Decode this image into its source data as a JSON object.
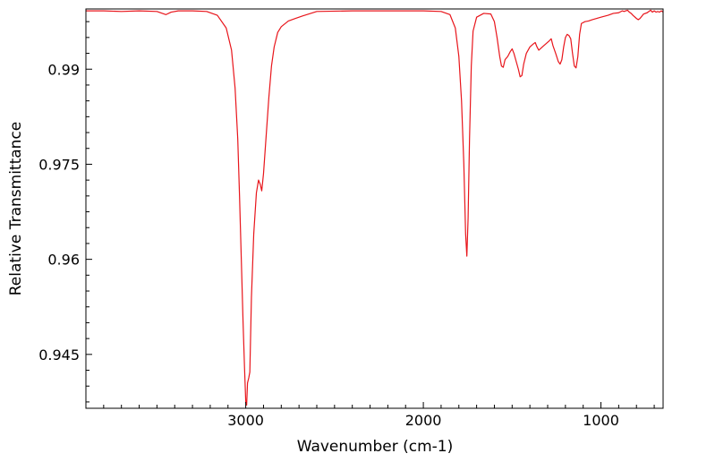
{
  "chart_data": {
    "type": "line",
    "title": "",
    "xlabel": "Wavenumber (cm-1)",
    "ylabel": "Relative Transmittance",
    "xlim": [
      3900,
      650
    ],
    "ylim": [
      0.9365,
      0.9995
    ],
    "x_reversed": true,
    "grid": false,
    "legend": "none",
    "x_ticks": [
      {
        "value": 3000,
        "label": "3000"
      },
      {
        "value": 2000,
        "label": "2000"
      },
      {
        "value": 1000,
        "label": "1000"
      }
    ],
    "y_ticks": [
      {
        "value": 0.99,
        "label": "0.99"
      },
      {
        "value": 0.975,
        "label": "0.975"
      },
      {
        "value": 0.96,
        "label": "0.96"
      },
      {
        "value": 0.945,
        "label": "0.945"
      }
    ],
    "series": [
      {
        "color": "#e8151b",
        "points": [
          [
            3900,
            0.9992
          ],
          [
            3800,
            0.9992
          ],
          [
            3700,
            0.9991
          ],
          [
            3600,
            0.9992
          ],
          [
            3500,
            0.9991
          ],
          [
            3450,
            0.9986
          ],
          [
            3420,
            0.999
          ],
          [
            3380,
            0.9992
          ],
          [
            3300,
            0.9992
          ],
          [
            3220,
            0.9991
          ],
          [
            3160,
            0.9985
          ],
          [
            3110,
            0.9965
          ],
          [
            3080,
            0.993
          ],
          [
            3060,
            0.987
          ],
          [
            3045,
            0.979
          ],
          [
            3035,
            0.97
          ],
          [
            3025,
            0.96
          ],
          [
            3015,
            0.95
          ],
          [
            3007,
            0.943
          ],
          [
            3000,
            0.9375
          ],
          [
            2995,
            0.937
          ],
          [
            2990,
            0.9405
          ],
          [
            2983,
            0.9413
          ],
          [
            2977,
            0.9422
          ],
          [
            2968,
            0.954
          ],
          [
            2955,
            0.964
          ],
          [
            2940,
            0.9705
          ],
          [
            2928,
            0.9725
          ],
          [
            2918,
            0.9718
          ],
          [
            2910,
            0.9708
          ],
          [
            2900,
            0.9735
          ],
          [
            2885,
            0.9795
          ],
          [
            2870,
            0.9855
          ],
          [
            2855,
            0.9905
          ],
          [
            2840,
            0.9935
          ],
          [
            2820,
            0.9958
          ],
          [
            2800,
            0.9967
          ],
          [
            2760,
            0.9976
          ],
          [
            2720,
            0.998
          ],
          [
            2680,
            0.9984
          ],
          [
            2600,
            0.9991
          ],
          [
            2400,
            0.9992
          ],
          [
            2200,
            0.9992
          ],
          [
            2000,
            0.9992
          ],
          [
            1900,
            0.9991
          ],
          [
            1850,
            0.9986
          ],
          [
            1820,
            0.9965
          ],
          [
            1800,
            0.992
          ],
          [
            1785,
            0.985
          ],
          [
            1772,
            0.975
          ],
          [
            1762,
            0.964
          ],
          [
            1755,
            0.9605
          ],
          [
            1748,
            0.9665
          ],
          [
            1740,
            0.979
          ],
          [
            1730,
            0.9905
          ],
          [
            1720,
            0.996
          ],
          [
            1700,
            0.9982
          ],
          [
            1660,
            0.9988
          ],
          [
            1620,
            0.9987
          ],
          [
            1600,
            0.9975
          ],
          [
            1585,
            0.995
          ],
          [
            1570,
            0.992
          ],
          [
            1560,
            0.9905
          ],
          [
            1550,
            0.9903
          ],
          [
            1540,
            0.9915
          ],
          [
            1525,
            0.992
          ],
          [
            1510,
            0.9928
          ],
          [
            1500,
            0.9932
          ],
          [
            1490,
            0.9925
          ],
          [
            1480,
            0.9915
          ],
          [
            1465,
            0.99
          ],
          [
            1455,
            0.9888
          ],
          [
            1445,
            0.989
          ],
          [
            1435,
            0.9908
          ],
          [
            1420,
            0.9925
          ],
          [
            1400,
            0.9935
          ],
          [
            1380,
            0.994
          ],
          [
            1370,
            0.9942
          ],
          [
            1360,
            0.9935
          ],
          [
            1350,
            0.993
          ],
          [
            1330,
            0.9935
          ],
          [
            1310,
            0.994
          ],
          [
            1290,
            0.9945
          ],
          [
            1280,
            0.9948
          ],
          [
            1270,
            0.9937
          ],
          [
            1255,
            0.9925
          ],
          [
            1240,
            0.9912
          ],
          [
            1230,
            0.9908
          ],
          [
            1220,
            0.9915
          ],
          [
            1210,
            0.9935
          ],
          [
            1200,
            0.995
          ],
          [
            1190,
            0.9955
          ],
          [
            1180,
            0.9953
          ],
          [
            1170,
            0.9948
          ],
          [
            1160,
            0.9925
          ],
          [
            1150,
            0.9905
          ],
          [
            1140,
            0.9902
          ],
          [
            1130,
            0.992
          ],
          [
            1120,
            0.9955
          ],
          [
            1110,
            0.9972
          ],
          [
            1090,
            0.9975
          ],
          [
            1070,
            0.9976
          ],
          [
            1050,
            0.9978
          ],
          [
            1000,
            0.9982
          ],
          [
            960,
            0.9985
          ],
          [
            930,
            0.9988
          ],
          [
            900,
            0.9989
          ],
          [
            880,
            0.9992
          ],
          [
            870,
            0.9991
          ],
          [
            860,
            0.9992
          ],
          [
            850,
            0.9993
          ],
          [
            840,
            0.999
          ],
          [
            830,
            0.9988
          ],
          [
            820,
            0.9985
          ],
          [
            800,
            0.998
          ],
          [
            790,
            0.9978
          ],
          [
            780,
            0.998
          ],
          [
            760,
            0.9987
          ],
          [
            740,
            0.9989
          ],
          [
            720,
            0.9993
          ],
          [
            710,
            0.999
          ],
          [
            700,
            0.9992
          ],
          [
            690,
            0.999
          ],
          [
            680,
            0.9991
          ],
          [
            670,
            0.999
          ],
          [
            660,
            0.9992
          ],
          [
            650,
            0.999
          ]
        ]
      }
    ]
  }
}
